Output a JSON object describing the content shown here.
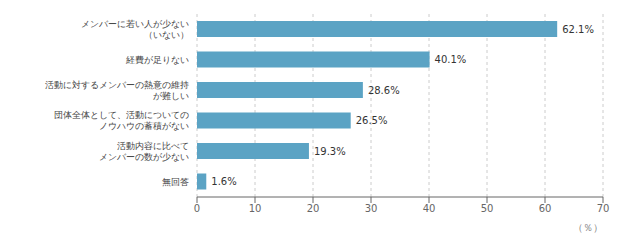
{
  "chart_data": {
    "type": "bar",
    "orientation": "horizontal",
    "categories": [
      "無回答",
      "活動内容に比べて\nメンバーの数が少ない",
      "団体全体として、活動についての\nノウハウの蓄積がない",
      "活動に対するメンバーの熱意の維持\nが難しい",
      "経費が足りない",
      "メンバーに若い人が少ない\n（いない）"
    ],
    "values": [
      1.6,
      19.3,
      26.5,
      28.6,
      40.1,
      62.1
    ],
    "value_labels": [
      "1.6%",
      "19.3%",
      "26.5%",
      "28.6%",
      "40.1%",
      "62.1%"
    ],
    "data_labels": true,
    "color": "#5ba3c4",
    "xlim": [
      0,
      70
    ],
    "xticks": [
      0,
      10,
      20,
      30,
      40,
      50,
      60,
      70
    ],
    "xlabel": "（％）",
    "grid": true
  }
}
